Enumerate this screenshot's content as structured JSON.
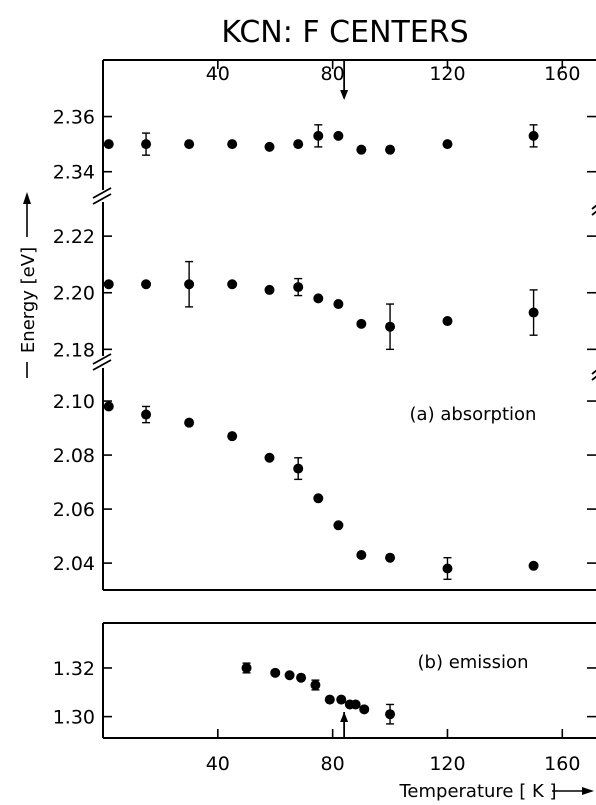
{
  "chart_data": {
    "title": "KCN: F CENTERS",
    "xlabel": "Temperature [ K ]",
    "ylabel": "Energy [eV]",
    "x_ticks": [
      40,
      80,
      120,
      160
    ],
    "xlim": [
      0,
      170
    ],
    "panels": [
      {
        "name": "(a) absorption",
        "type": "scatter",
        "segments": [
          {
            "ylim": [
              2.337,
              2.366
            ],
            "y_ticks": [
              "2.36",
              "2.34"
            ],
            "x": [
              2,
              15,
              30,
              45,
              58,
              68,
              75,
              82,
              90,
              100,
              120,
              150
            ],
            "y": [
              2.35,
              2.35,
              2.35,
              2.35,
              2.349,
              2.35,
              2.353,
              2.353,
              2.348,
              2.348,
              2.35,
              2.353
            ],
            "err": [
              0,
              0.004,
              0,
              0,
              0,
              0,
              0.004,
              0,
              0,
              0,
              0,
              0.004
            ]
          },
          {
            "ylim": [
              2.178,
              2.231
            ],
            "y_ticks": [
              "2.22",
              "2.20",
              "2.18"
            ],
            "x": [
              2,
              15,
              30,
              45,
              58,
              68,
              75,
              82,
              90,
              100,
              120,
              150
            ],
            "y": [
              2.203,
              2.203,
              2.203,
              2.203,
              2.201,
              2.202,
              2.198,
              2.196,
              2.189,
              2.188,
              2.19,
              2.193
            ],
            "err": [
              0,
              0,
              0.008,
              0,
              0,
              0.003,
              0,
              0,
              0,
              0.008,
              0,
              0.008
            ]
          },
          {
            "ylim": [
              2.033,
              2.1115
            ],
            "y_ticks": [
              "2.10",
              "2.08",
              "2.06",
              "2.04"
            ],
            "x": [
              2,
              15,
              30,
              45,
              58,
              68,
              75,
              82,
              90,
              100,
              120,
              150
            ],
            "y": [
              2.098,
              2.095,
              2.092,
              2.087,
              2.079,
              2.075,
              2.064,
              2.054,
              2.043,
              2.042,
              2.038,
              2.039
            ],
            "err": [
              0,
              0.003,
              0,
              0,
              0,
              0.004,
              0,
              0,
              0,
              0,
              0.004,
              0
            ]
          }
        ]
      },
      {
        "name": "(b) emission",
        "type": "scatter",
        "ylim": [
          1.2945,
          1.3315
        ],
        "y_ticks": [
          "1.32",
          "1.30"
        ],
        "x": [
          50,
          60,
          65,
          69,
          74,
          79,
          83,
          86,
          88,
          91,
          100
        ],
        "y": [
          1.32,
          1.318,
          1.317,
          1.316,
          1.313,
          1.307,
          1.307,
          1.305,
          1.305,
          1.303,
          1.301
        ],
        "err": [
          0.002,
          0,
          0,
          0,
          0.002,
          0,
          0,
          0,
          0,
          0,
          0.004
        ]
      }
    ],
    "markers": {
      "arrow_at_x": 84
    }
  }
}
